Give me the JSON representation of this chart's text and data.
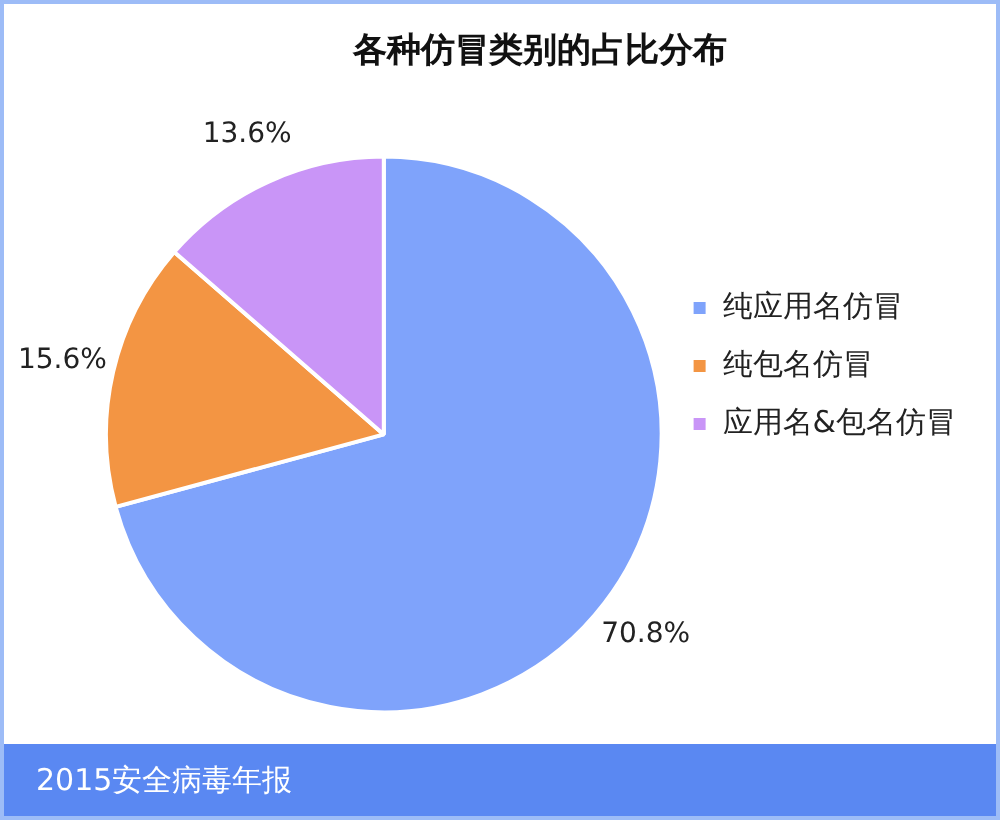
{
  "chart_data": {
    "type": "pie",
    "title": "各种仿冒类别的占比分布",
    "categories": [
      "纯应用名仿冒",
      "纯包名仿冒",
      "应用名&包名仿冒"
    ],
    "values": [
      70.8,
      15.6,
      13.6
    ],
    "colors": [
      "#7fa3fb",
      "#f39543",
      "#c995f7"
    ],
    "value_labels": [
      "70.8%",
      "15.6%",
      "13.6%"
    ],
    "legend": "right",
    "annotations": [
      "2015安全病毒年报"
    ]
  }
}
